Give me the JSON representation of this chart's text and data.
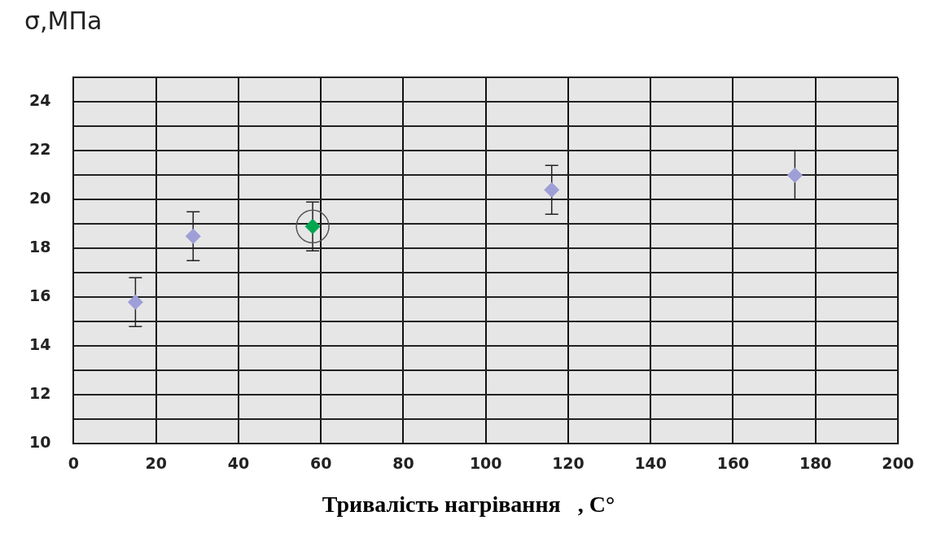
{
  "chart_data": {
    "type": "scatter",
    "ylabel": "σ,МПа",
    "xlabel": "Тривалість нагрівання   , С°",
    "xlim": [
      0,
      200
    ],
    "xticks": [
      0,
      20,
      40,
      60,
      80,
      100,
      120,
      140,
      160,
      180,
      200
    ],
    "ylim": [
      10,
      25
    ],
    "yticks": [
      10,
      {
        "value": 11,
        "label": null
      },
      12,
      {
        "value": 13,
        "label": null
      },
      14,
      {
        "value": 15,
        "label": null
      },
      16,
      {
        "value": 17,
        "label": null
      },
      18,
      {
        "value": 19,
        "label": null
      },
      20,
      {
        "value": 21,
        "label": null
      },
      22,
      {
        "value": 23,
        "label": null
      },
      24,
      {
        "value": 25,
        "label": null
      }
    ],
    "grid": true,
    "marker": "diamond",
    "series": [
      {
        "color": "#9f9fd8",
        "x": [
          15,
          29,
          116,
          175
        ],
        "values": [
          15.8,
          18.5,
          20.4,
          21
        ],
        "errors": [
          1,
          1,
          1,
          1
        ]
      },
      {
        "color": "#00a650",
        "x": [
          58
        ],
        "values": [
          18.9
        ],
        "errors": [
          1
        ]
      }
    ]
  }
}
